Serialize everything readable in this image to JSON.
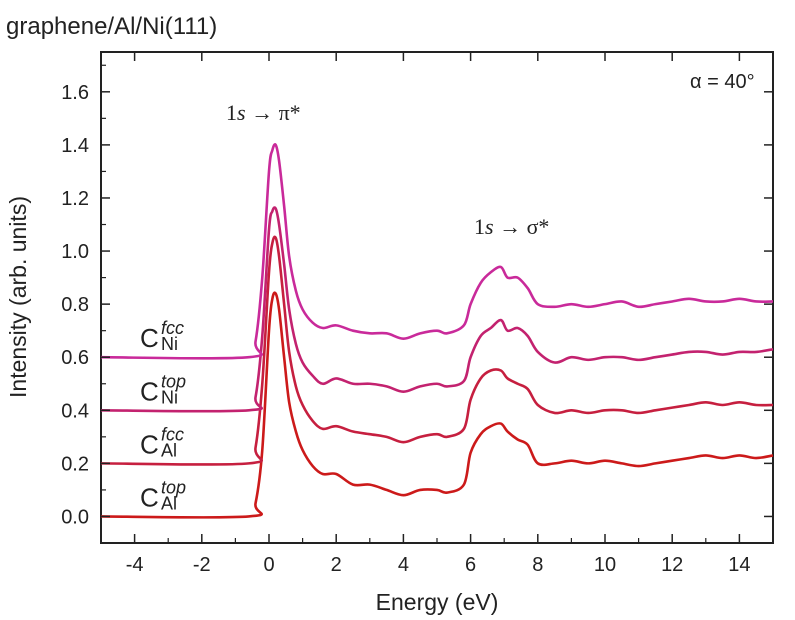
{
  "chart_data": {
    "type": "line",
    "title": "graphene/Al/Ni(111)",
    "xlabel": "Energy (eV)",
    "ylabel": "Intensity (arb. units)",
    "xlim": [
      -5,
      15
    ],
    "ylim": [
      -0.1,
      1.75
    ],
    "xticks": [
      -4,
      -2,
      0,
      2,
      4,
      6,
      8,
      10,
      12,
      14
    ],
    "yticks": [
      0.0,
      0.2,
      0.4,
      0.6,
      0.8,
      1.0,
      1.2,
      1.4,
      1.6
    ],
    "xtick_labels": [
      "-4",
      "-2",
      "0",
      "2",
      "4",
      "6",
      "8",
      "10",
      "12",
      "14"
    ],
    "ytick_labels": [
      "0.0",
      "0.2",
      "0.4",
      "0.6",
      "0.8",
      "1.0",
      "1.2",
      "1.4",
      "1.6"
    ],
    "grid": false,
    "annotations": {
      "angle": "α = 40°",
      "pi_label_prefix": "1",
      "pi_label_s": "s",
      "pi_label_rest": " → π*",
      "sigma_label_prefix": "1",
      "sigma_label_s": "s",
      "sigma_label_rest": " → σ*"
    },
    "series": [
      {
        "name_base": "C",
        "name_sup": "top",
        "name_sub": "Al",
        "color": "#cc1a1a",
        "x": [
          -5,
          -0.6,
          -0.4,
          -0.2,
          0.0,
          0.1,
          0.2,
          0.3,
          0.45,
          0.6,
          0.8,
          1.0,
          1.3,
          1.6,
          2.0,
          2.5,
          3.0,
          3.5,
          4.0,
          4.5,
          5.0,
          5.3,
          5.8,
          6.0,
          6.3,
          6.6,
          6.9,
          7.1,
          7.4,
          7.7,
          8.0,
          8.5,
          9.0,
          9.5,
          10.0,
          10.5,
          11.0,
          11.5,
          12.0,
          12.5,
          13.0,
          13.5,
          14.0,
          14.5,
          15.0
        ],
        "values": [
          0.0,
          0.0,
          0.05,
          0.25,
          0.7,
          0.82,
          0.84,
          0.78,
          0.6,
          0.43,
          0.32,
          0.25,
          0.19,
          0.16,
          0.16,
          0.12,
          0.12,
          0.1,
          0.08,
          0.1,
          0.1,
          0.09,
          0.12,
          0.24,
          0.31,
          0.34,
          0.35,
          0.32,
          0.29,
          0.27,
          0.2,
          0.2,
          0.21,
          0.2,
          0.21,
          0.2,
          0.19,
          0.2,
          0.21,
          0.22,
          0.23,
          0.22,
          0.23,
          0.22,
          0.23
        ]
      },
      {
        "name_base": "C",
        "name_sup": "fcc",
        "name_sub": "Al",
        "color": "#c61f3f",
        "x": [
          -5,
          -0.6,
          -0.4,
          -0.2,
          0.0,
          0.1,
          0.2,
          0.3,
          0.45,
          0.6,
          0.8,
          1.0,
          1.3,
          1.6,
          2.0,
          2.5,
          3.0,
          3.5,
          4.0,
          4.5,
          5.0,
          5.3,
          5.8,
          6.0,
          6.3,
          6.6,
          6.9,
          7.1,
          7.4,
          7.7,
          8.0,
          8.5,
          9.0,
          9.5,
          10.0,
          10.5,
          11.0,
          11.5,
          12.0,
          12.5,
          13.0,
          13.5,
          14.0,
          14.5,
          15.0
        ],
        "values": [
          0.2,
          0.2,
          0.26,
          0.5,
          0.92,
          1.03,
          1.05,
          0.98,
          0.8,
          0.62,
          0.49,
          0.42,
          0.36,
          0.33,
          0.34,
          0.32,
          0.31,
          0.3,
          0.28,
          0.3,
          0.31,
          0.3,
          0.33,
          0.44,
          0.52,
          0.55,
          0.55,
          0.52,
          0.5,
          0.48,
          0.42,
          0.39,
          0.4,
          0.39,
          0.4,
          0.4,
          0.39,
          0.4,
          0.41,
          0.42,
          0.43,
          0.42,
          0.43,
          0.42,
          0.42
        ]
      },
      {
        "name_base": "C",
        "name_sup": "top",
        "name_sub": "Ni",
        "color": "#c3226f",
        "x": [
          -5,
          -0.6,
          -0.4,
          -0.2,
          0.0,
          0.1,
          0.2,
          0.3,
          0.45,
          0.6,
          0.8,
          1.0,
          1.3,
          1.6,
          2.0,
          2.5,
          3.0,
          3.5,
          4.0,
          4.5,
          5.0,
          5.3,
          5.8,
          6.0,
          6.3,
          6.6,
          6.9,
          7.1,
          7.4,
          7.7,
          8.0,
          8.5,
          9.0,
          9.5,
          10.0,
          10.5,
          11.0,
          11.5,
          12.0,
          12.5,
          13.0,
          13.5,
          14.0,
          14.5,
          15.0
        ],
        "values": [
          0.4,
          0.4,
          0.45,
          0.68,
          1.08,
          1.15,
          1.16,
          1.1,
          0.95,
          0.78,
          0.65,
          0.58,
          0.53,
          0.5,
          0.52,
          0.5,
          0.5,
          0.49,
          0.47,
          0.49,
          0.5,
          0.49,
          0.51,
          0.6,
          0.68,
          0.71,
          0.74,
          0.7,
          0.71,
          0.68,
          0.62,
          0.58,
          0.6,
          0.59,
          0.6,
          0.6,
          0.59,
          0.6,
          0.61,
          0.62,
          0.62,
          0.61,
          0.62,
          0.62,
          0.63
        ]
      },
      {
        "name_base": "C",
        "name_sup": "fcc",
        "name_sub": "Ni",
        "color": "#c92a9a",
        "x": [
          -5,
          -0.6,
          -0.4,
          -0.2,
          0.0,
          0.1,
          0.2,
          0.3,
          0.45,
          0.6,
          0.8,
          1.0,
          1.3,
          1.6,
          2.0,
          2.5,
          3.0,
          3.5,
          4.0,
          4.5,
          5.0,
          5.3,
          5.8,
          6.0,
          6.3,
          6.6,
          6.9,
          7.1,
          7.4,
          7.7,
          8.0,
          8.5,
          9.0,
          9.5,
          10.0,
          10.5,
          11.0,
          11.5,
          12.0,
          12.5,
          13.0,
          13.5,
          14.0,
          14.5,
          15.0
        ],
        "values": [
          0.6,
          0.6,
          0.66,
          0.9,
          1.3,
          1.38,
          1.4,
          1.34,
          1.17,
          0.98,
          0.85,
          0.78,
          0.73,
          0.71,
          0.72,
          0.7,
          0.69,
          0.69,
          0.67,
          0.69,
          0.7,
          0.69,
          0.72,
          0.8,
          0.88,
          0.92,
          0.94,
          0.9,
          0.9,
          0.86,
          0.8,
          0.79,
          0.8,
          0.79,
          0.8,
          0.81,
          0.79,
          0.8,
          0.81,
          0.82,
          0.81,
          0.81,
          0.82,
          0.81,
          0.81
        ]
      }
    ]
  }
}
